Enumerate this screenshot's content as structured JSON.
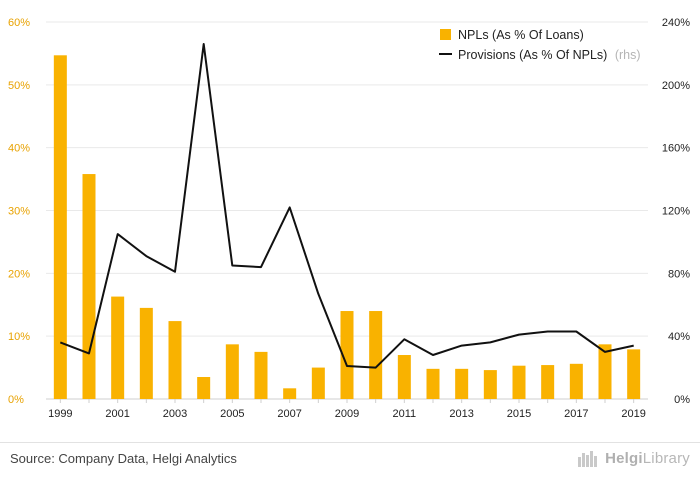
{
  "chart_data": {
    "type": "bar+line",
    "categories": [
      "1999",
      "2000",
      "2001",
      "2002",
      "2003",
      "2004",
      "2005",
      "2006",
      "2007",
      "2008",
      "2009",
      "2010",
      "2011",
      "2012",
      "2013",
      "2014",
      "2015",
      "2016",
      "2017",
      "2018",
      "2019"
    ],
    "tick_labels": [
      "1999",
      "2001",
      "2003",
      "2005",
      "2007",
      "2009",
      "2011",
      "2013",
      "2015",
      "2017",
      "2019"
    ],
    "series": [
      {
        "name": "NPLs (As % Of Loans)",
        "type": "bar",
        "axis": "left",
        "color": "#f9b200",
        "values": [
          54.7,
          35.8,
          16.3,
          14.5,
          12.4,
          3.5,
          8.7,
          7.5,
          1.7,
          5.0,
          14.0,
          14.0,
          7.0,
          4.8,
          4.8,
          4.6,
          5.3,
          5.4,
          5.6,
          8.7,
          7.9
        ]
      },
      {
        "name": "Provisions (As % Of NPLs)",
        "type": "line",
        "axis": "right",
        "color": "#111111",
        "values": [
          36,
          29,
          105,
          91,
          81,
          226,
          85,
          84,
          122,
          67,
          21,
          20,
          38,
          28,
          34,
          36,
          41,
          43,
          43,
          30,
          34
        ]
      }
    ],
    "legend": {
      "bar_label": "NPLs (As % Of Loans)",
      "line_label": "Provisions (As % Of NPLs)",
      "line_suffix": "(rhs)"
    },
    "y_left": {
      "min": 0,
      "max": 60,
      "ticks": [
        "0%",
        "10%",
        "20%",
        "30%",
        "40%",
        "50%",
        "60%"
      ]
    },
    "y_right": {
      "min": 0,
      "max": 240,
      "ticks": [
        "0%",
        "40%",
        "80%",
        "120%",
        "160%",
        "200%",
        "240%"
      ]
    },
    "grid": true,
    "legend_position": "top-right"
  },
  "footer": {
    "source": "Source: Company Data, Helgi Analytics",
    "brand_prefix": "Helgi",
    "brand_suffix": "Library"
  },
  "colors": {
    "bar": "#f9b200",
    "line": "#111111",
    "left_axis_text": "#e8a200",
    "grid": "#e9e9e9"
  }
}
